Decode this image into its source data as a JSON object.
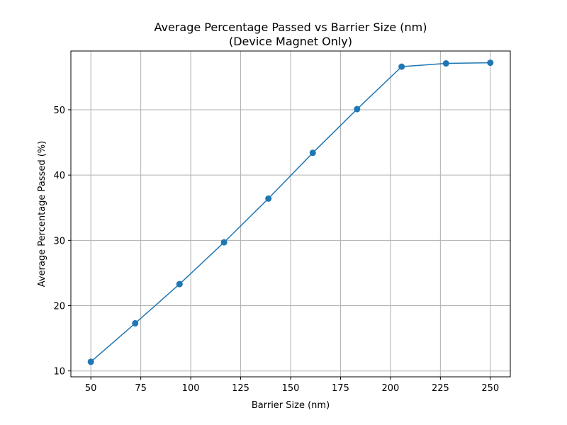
{
  "chart_data": {
    "type": "line",
    "title": "Average Percentage Passed vs Barrier Size (nm)",
    "subtitle": "(Device Magnet Only)",
    "xlabel": "Barrier Size (nm)",
    "ylabel": "Average Percentage Passed (%)",
    "xlim": [
      40.0,
      260.0
    ],
    "ylim": [
      9.1,
      59.0
    ],
    "xticks": [
      50,
      75,
      100,
      125,
      150,
      175,
      200,
      225,
      250
    ],
    "yticks": [
      10,
      20,
      30,
      40,
      50
    ],
    "grid": true,
    "legend": "none",
    "series": [
      {
        "color": "#1f77b4",
        "marker": "circle",
        "x": [
          50.0,
          72.2,
          94.4,
          116.7,
          138.9,
          161.1,
          183.3,
          205.6,
          227.8,
          250.0
        ],
        "y": [
          11.4,
          17.3,
          23.3,
          29.7,
          36.4,
          43.4,
          50.1,
          56.6,
          57.1,
          57.2
        ]
      }
    ]
  }
}
